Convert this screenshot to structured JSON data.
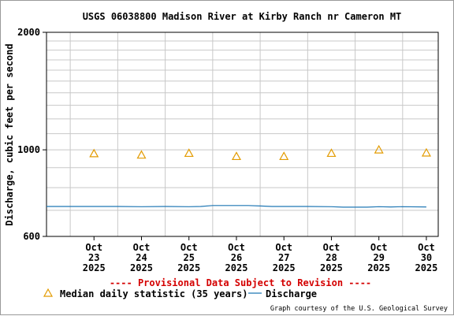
{
  "chart_data": {
    "type": "line",
    "title": "USGS 06038800 Madison River at Kirby Ranch nr Cameron MT",
    "ylabel": "Discharge, cubic feet per second",
    "xlabel": "",
    "y_scale": "log",
    "ylim": [
      600,
      2000
    ],
    "y_ticks": [
      "2000",
      "1000",
      "600"
    ],
    "y_tick_values": [
      2000,
      1000,
      600
    ],
    "x_ticks": [
      {
        "date": "2025-10-23",
        "lines": [
          "Oct",
          "23",
          "2025"
        ]
      },
      {
        "date": "2025-10-24",
        "lines": [
          "Oct",
          "24",
          "2025"
        ]
      },
      {
        "date": "2025-10-25",
        "lines": [
          "Oct",
          "25",
          "2025"
        ]
      },
      {
        "date": "2025-10-26",
        "lines": [
          "Oct",
          "26",
          "2025"
        ]
      },
      {
        "date": "2025-10-27",
        "lines": [
          "Oct",
          "27",
          "2025"
        ]
      },
      {
        "date": "2025-10-28",
        "lines": [
          "Oct",
          "28",
          "2025"
        ]
      },
      {
        "date": "2025-10-29",
        "lines": [
          "Oct",
          "29",
          "2025"
        ]
      },
      {
        "date": "2025-10-30",
        "lines": [
          "Oct",
          "30",
          "2025"
        ]
      }
    ],
    "xlim": [
      "2025-10-22T12:00",
      "2025-10-30T18:00"
    ],
    "grid": true,
    "series": [
      {
        "name": "Median daily statistic (35 years)",
        "kind": "scatter",
        "marker": "triangle",
        "color": "#e39b00",
        "x": [
          "2025-10-23T12:00",
          "2025-10-24T12:00",
          "2025-10-25T12:00",
          "2025-10-26T12:00",
          "2025-10-27T12:00",
          "2025-10-28T12:00",
          "2025-10-29T12:00",
          "2025-10-30T12:00"
        ],
        "values": [
          978,
          970,
          980,
          962,
          962,
          980,
          1000,
          982
        ]
      },
      {
        "name": "Discharge",
        "kind": "line",
        "color": "#1f77b4",
        "x": [
          "2025-10-22T12:00",
          "2025-10-23T00:00",
          "2025-10-23T12:00",
          "2025-10-24T00:00",
          "2025-10-24T12:00",
          "2025-10-25T00:00",
          "2025-10-25T12:00",
          "2025-10-25T18:00",
          "2025-10-26T00:00",
          "2025-10-26T06:00",
          "2025-10-26T12:00",
          "2025-10-26T18:00",
          "2025-10-27T00:00",
          "2025-10-27T06:00",
          "2025-10-27T12:00",
          "2025-10-28T00:00",
          "2025-10-28T12:00",
          "2025-10-28T18:00",
          "2025-10-29T00:00",
          "2025-10-29T06:00",
          "2025-10-29T12:00",
          "2025-10-29T18:00",
          "2025-10-30T00:00",
          "2025-10-30T12:00"
        ],
        "values": [
          716,
          716,
          716,
          716,
          715,
          716,
          715,
          716,
          720,
          720,
          720,
          720,
          718,
          716,
          716,
          716,
          715,
          713,
          713,
          713,
          715,
          714,
          715,
          714
        ]
      }
    ],
    "legend": {
      "placement": "bottom-left"
    }
  },
  "notices": {
    "provisional": "---- Provisional Data Subject to Revision ----",
    "credit": "Graph courtesy of the U.S. Geological Survey"
  },
  "colors": {
    "provisional": "#d40000",
    "grid": "#c8c8c8",
    "axis": "#000000"
  }
}
